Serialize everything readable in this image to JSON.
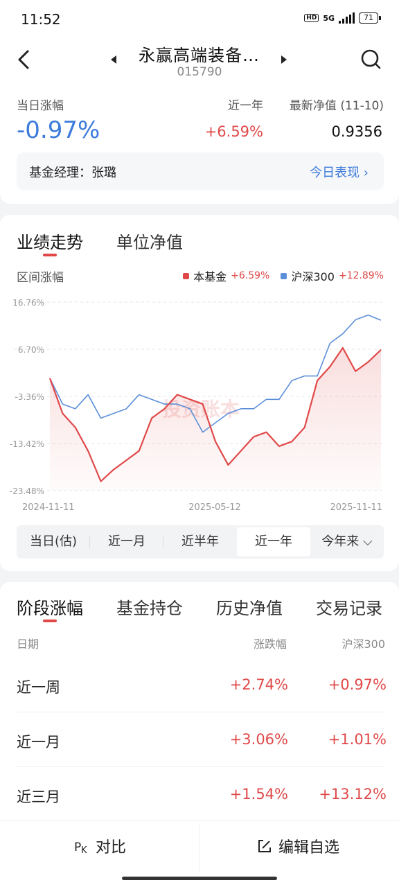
{
  "status": {
    "time": "11:52",
    "hd": "HD",
    "network": "5G",
    "battery": "71"
  },
  "header": {
    "fund_name": "永赢高端装备…",
    "fund_code": "015790"
  },
  "summary": {
    "day_change_label": "当日涨幅",
    "day_change": "-0.97%",
    "year_label": "近一年",
    "year_change": "+6.59%",
    "nav_label": "最新净值 (11-10)",
    "nav_value": "0.9356",
    "manager": "基金经理：张璐",
    "today_link": "今日表现 ›"
  },
  "perf": {
    "tabs": [
      "业绩走势",
      "单位净值"
    ],
    "range_label": "区间涨幅",
    "legend": [
      {
        "name": "本基金",
        "value": "+6.59%",
        "color": "#e04848"
      },
      {
        "name": "沪深300",
        "value": "+12.89%",
        "color": "#5b8fd9"
      }
    ],
    "watermark": "投资账本",
    "periods": [
      "当日(估)",
      "近一月",
      "近半年",
      "近一年",
      "今年来 ⌵"
    ],
    "selected_period": "近一年"
  },
  "chart_data": {
    "type": "line",
    "y_ticks": [
      "16.76%",
      "6.70%",
      "-3.36%",
      "-13.42%",
      "-23.48%"
    ],
    "ylim": [
      -23.48,
      16.76
    ],
    "x_ticks": [
      "2024-11-11",
      "2025-05-12",
      "2025-11-11"
    ],
    "x": [
      0,
      2,
      4,
      6,
      8,
      10,
      12,
      14,
      16,
      18,
      20,
      22,
      24,
      26,
      28,
      30,
      32,
      34,
      36,
      38,
      40,
      42,
      44,
      46,
      48,
      50,
      52
    ],
    "series": [
      {
        "name": "本基金",
        "color": "#e04848",
        "values": [
          0.5,
          -7,
          -10,
          -15,
          -21.5,
          -19,
          -17,
          -15,
          -8,
          -6,
          -3,
          -4,
          -5,
          -13,
          -18,
          -15,
          -12,
          -11,
          -14,
          -13,
          -10,
          0,
          3,
          7,
          2,
          4,
          6.59
        ]
      },
      {
        "name": "沪深300",
        "color": "#5b8fd9",
        "values": [
          0.5,
          -5,
          -6,
          -3,
          -8,
          -7,
          -6,
          -3,
          -4,
          -5,
          -5,
          -6,
          -11,
          -9,
          -7,
          -6,
          -6,
          -4,
          -4,
          0,
          1,
          1,
          8,
          10,
          13,
          14,
          12.89
        ]
      }
    ]
  },
  "stages": {
    "tabs": [
      "阶段涨幅",
      "基金持仓",
      "历史净值",
      "交易记录"
    ],
    "headers": {
      "date": "日期",
      "change": "涨跌幅",
      "hs300": "沪深300"
    },
    "rows": [
      {
        "label": "近一周",
        "fund": "+2.74%",
        "hs300": "+0.97%"
      },
      {
        "label": "近一月",
        "fund": "+3.06%",
        "hs300": "+1.01%"
      },
      {
        "label": "近三月",
        "fund": "+1.54%",
        "hs300": "+13.12%"
      }
    ]
  },
  "bottom": {
    "compare": "对比",
    "edit": "编辑自选"
  }
}
